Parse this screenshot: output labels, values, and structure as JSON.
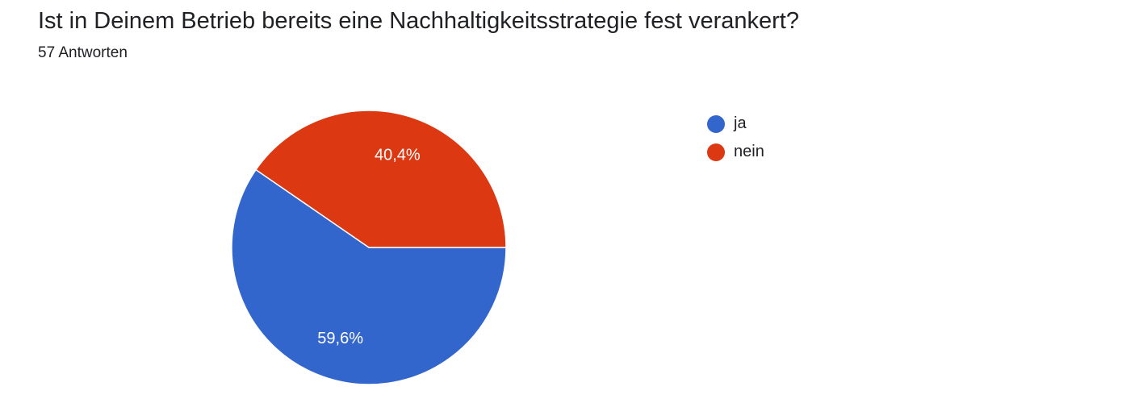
{
  "header": {
    "question": "Ist in Deinem Betrieb bereits eine Nachhaltigkeitsstrategie fest verankert?",
    "responses": "57 Antworten"
  },
  "chart_data": {
    "type": "pie",
    "title": "Ist in Deinem Betrieb bereits eine Nachhaltigkeitsstrategie fest verankert?",
    "subtitle": "57 Antworten",
    "legend_position": "right",
    "slices": [
      {
        "label": "ja",
        "value": 59.6,
        "display": "59,6%",
        "color": "#3366cc"
      },
      {
        "label": "nein",
        "value": 40.4,
        "display": "40,4%",
        "color": "#dc3912"
      }
    ]
  }
}
